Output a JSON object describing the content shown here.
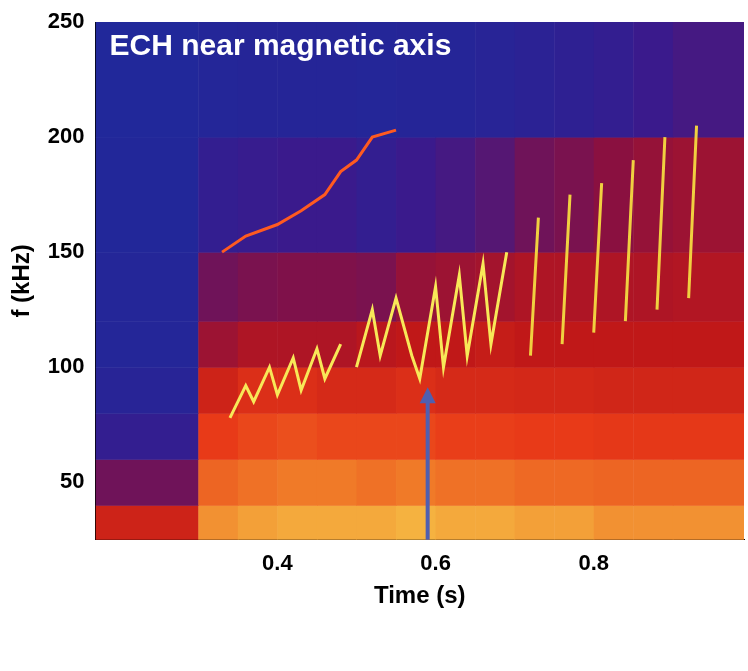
{
  "chart_data": {
    "type": "heatmap",
    "title": "ECH near magnetic axis",
    "x_label": "Time (s)",
    "y_label": "f (kHz)",
    "xlim": [
      0.17,
      0.99
    ],
    "ylim": [
      25,
      250
    ],
    "xticks": [
      0.4,
      0.6,
      0.8
    ],
    "yticks": [
      50,
      100,
      150,
      200,
      250
    ],
    "grid": false,
    "heatmap": {
      "x_edges": [
        0.17,
        0.3,
        0.35,
        0.4,
        0.45,
        0.5,
        0.55,
        0.6,
        0.65,
        0.7,
        0.75,
        0.8,
        0.85,
        0.9,
        0.99
      ],
      "y_edges": [
        25,
        40,
        60,
        80,
        100,
        120,
        150,
        200,
        250
      ],
      "cells": [
        [
          0.55,
          0.85,
          0.88,
          0.9,
          0.9,
          0.9,
          0.92,
          0.9,
          0.9,
          0.88,
          0.88,
          0.85,
          0.85,
          0.85
        ],
        [
          0.3,
          0.75,
          0.78,
          0.8,
          0.8,
          0.78,
          0.8,
          0.78,
          0.78,
          0.76,
          0.76,
          0.75,
          0.75,
          0.75
        ],
        [
          0.15,
          0.65,
          0.68,
          0.7,
          0.68,
          0.68,
          0.68,
          0.66,
          0.66,
          0.65,
          0.65,
          0.64,
          0.64,
          0.64
        ],
        [
          0.08,
          0.55,
          0.6,
          0.6,
          0.58,
          0.58,
          0.6,
          0.58,
          0.58,
          0.57,
          0.57,
          0.56,
          0.56,
          0.56
        ],
        [
          0.05,
          0.4,
          0.45,
          0.45,
          0.45,
          0.48,
          0.5,
          0.5,
          0.52,
          0.5,
          0.5,
          0.5,
          0.5,
          0.5
        ],
        [
          0.05,
          0.3,
          0.32,
          0.33,
          0.33,
          0.32,
          0.38,
          0.4,
          0.42,
          0.45,
          0.45,
          0.45,
          0.45,
          0.46
        ],
        [
          0.04,
          0.15,
          0.18,
          0.2,
          0.2,
          0.15,
          0.2,
          0.22,
          0.25,
          0.3,
          0.32,
          0.35,
          0.38,
          0.4
        ],
        [
          0.03,
          0.05,
          0.06,
          0.06,
          0.06,
          0.05,
          0.06,
          0.06,
          0.08,
          0.1,
          0.12,
          0.15,
          0.2,
          0.22
        ]
      ],
      "color_range": [
        0,
        1
      ]
    },
    "series": [
      {
        "type": "line",
        "color": "#ff5a20",
        "x": [
          0.33,
          0.36,
          0.4,
          0.43,
          0.46,
          0.48,
          0.5,
          0.52,
          0.55
        ],
        "values": [
          150,
          157,
          162,
          168,
          175,
          185,
          190,
          200,
          203
        ]
      },
      {
        "type": "line",
        "color": "#f8e858",
        "x": [
          0.34,
          0.36,
          0.37,
          0.39,
          0.4,
          0.42,
          0.43,
          0.45,
          0.46,
          0.48,
          0.49,
          0.5,
          0.52,
          0.53,
          0.55,
          0.57,
          0.58,
          0.6,
          0.61,
          0.63,
          0.64,
          0.66,
          0.67,
          0.69
        ],
        "values": [
          78,
          92,
          85,
          100,
          88,
          104,
          90,
          108,
          95,
          110,
          null,
          100,
          125,
          105,
          130,
          105,
          95,
          135,
          100,
          140,
          105,
          145,
          110,
          150
        ]
      },
      {
        "type": "line",
        "color": "#f0d040",
        "x": [
          0.72,
          0.73,
          0.735,
          0.76,
          0.77,
          0.775,
          0.8,
          0.81,
          0.815,
          0.84,
          0.85,
          0.855,
          0.88,
          0.89,
          0.895,
          0.92,
          0.93
        ],
        "values": [
          105,
          165,
          null,
          110,
          175,
          null,
          115,
          180,
          null,
          120,
          190,
          null,
          125,
          200,
          null,
          130,
          205
        ]
      }
    ],
    "arrow": {
      "x": 0.59,
      "y": 93
    }
  }
}
